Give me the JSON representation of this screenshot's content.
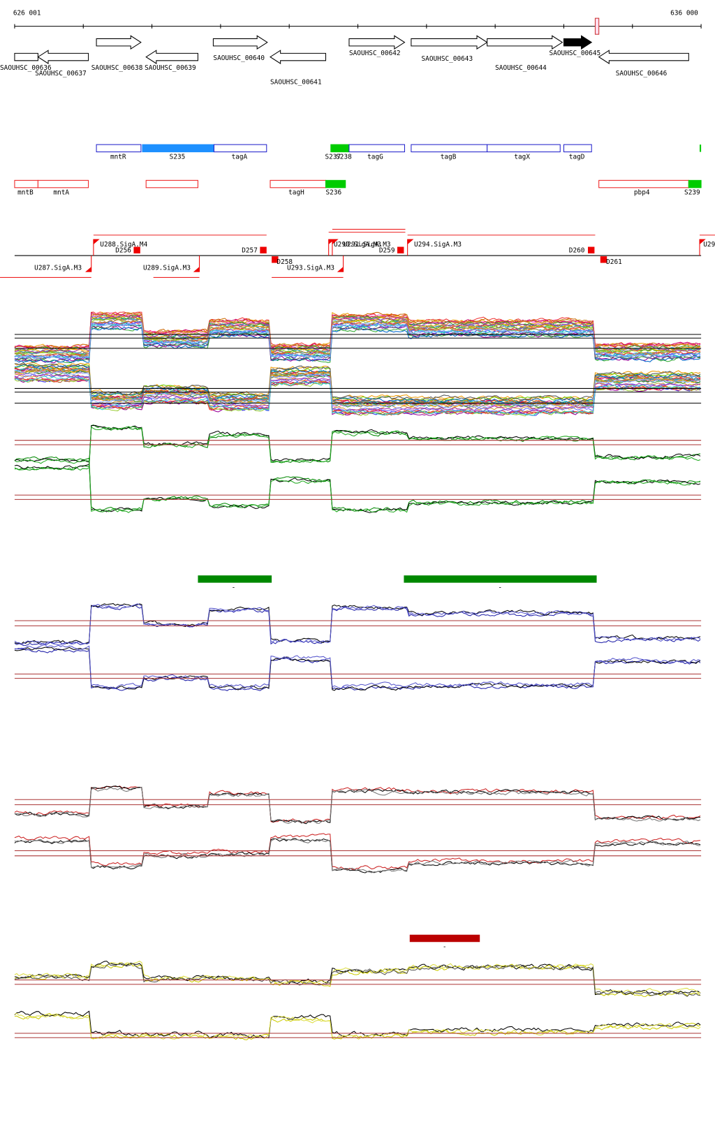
{
  "ruler": {
    "start": "626 001",
    "end": "636 000"
  },
  "genes": [
    {
      "label": "SAOUHSC_00636"
    },
    {
      "label": "SAOUHSC_00637"
    },
    {
      "label": "SAOUHSC_00638"
    },
    {
      "label": "SAOUHSC_00639"
    },
    {
      "label": "SAOUHSC_00640"
    },
    {
      "label": "SAOUHSC_00641"
    },
    {
      "label": "SAOUHSC_00642"
    },
    {
      "label": "SAOUHSC_00643"
    },
    {
      "label": "SAOUHSC_00644"
    },
    {
      "label": "SAOUHSC_00645"
    },
    {
      "label": "SAOUHSC_00646"
    }
  ],
  "features_forward": [
    {
      "label": "mntR"
    },
    {
      "label": "S235"
    },
    {
      "label": "tagA"
    },
    {
      "label": "S237"
    },
    {
      "label": "S238"
    },
    {
      "label": "tagG"
    },
    {
      "label": "tagB"
    },
    {
      "label": "tagX"
    },
    {
      "label": "tagD"
    }
  ],
  "features_reverse": [
    {
      "label": "mntB"
    },
    {
      "label": "mntA"
    },
    {
      "label": "tagH"
    },
    {
      "label": "S236"
    },
    {
      "label": "pbp4"
    },
    {
      "label": "S239"
    }
  ],
  "promoters": [
    {
      "label": "U288.SigA.M4"
    },
    {
      "label": "D256"
    },
    {
      "label": "D257"
    },
    {
      "label": "D258"
    },
    {
      "label": "U287.SigA.M3"
    },
    {
      "label": "U289.SigA.M3"
    },
    {
      "label": "U293.SigA.M3"
    },
    {
      "label": "U290.SigA.M3"
    },
    {
      "label": "U291.SigA.M3"
    },
    {
      "label": "D259"
    },
    {
      "label": "U294.SigA.M3"
    },
    {
      "label": "D260"
    },
    {
      "label": "D261"
    },
    {
      "label": "U29"
    }
  ],
  "regions": [
    {
      "label": "-"
    },
    {
      "label": "-"
    },
    {
      "label": "-"
    }
  ]
}
